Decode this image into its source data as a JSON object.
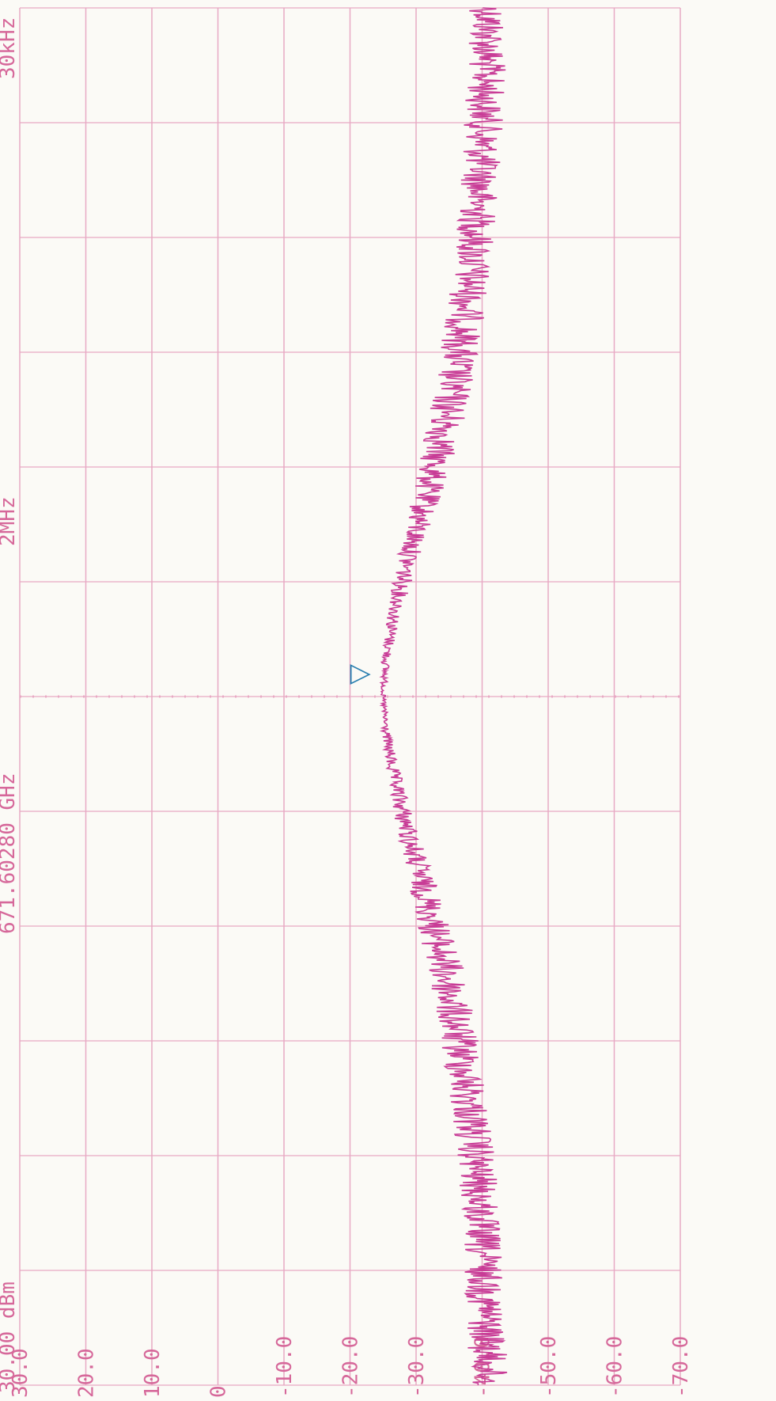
{
  "chart_data": {
    "type": "line",
    "header": {
      "left": "30.00 dBm",
      "center": "671.60280 GHz",
      "span": "2MHz",
      "rbw": "30kHz"
    },
    "y_ticks": [
      "30.0",
      "20.0",
      "10.0",
      "0",
      "-10.0",
      "-20.0",
      "-30.0",
      "-40.0",
      "-50.0",
      "-60.0",
      "-70.0"
    ],
    "ylim": [
      -70,
      30
    ],
    "xlim": [
      -1,
      1
    ],
    "grid": true,
    "marker": {
      "x": 0.0,
      "y": -24.8,
      "symbol": "▽"
    },
    "series": [
      {
        "x": [
          -1.0,
          -0.9,
          -0.8,
          -0.7,
          -0.6,
          -0.5,
          -0.4,
          -0.3,
          -0.2,
          -0.15,
          -0.1,
          -0.05,
          0.0,
          0.05,
          0.1,
          0.15,
          0.2,
          0.3,
          0.4,
          0.5,
          0.6,
          0.7,
          0.8,
          0.9,
          1.0
        ],
        "values": [
          -41,
          -40.6,
          -40,
          -39.3,
          -38.2,
          -36.5,
          -34.5,
          -31.8,
          -28.8,
          -27.5,
          -26.3,
          -25.4,
          -25.0,
          -25.4,
          -26.3,
          -27.5,
          -28.8,
          -31.8,
          -34.5,
          -36.5,
          -38.2,
          -39.3,
          -40,
          -40.6,
          -41
        ],
        "color": "#c83c96"
      }
    ],
    "colors": {
      "grid": "#e8a9c4",
      "text": "#d6689a",
      "trace": "#c83c96",
      "marker": "#2a7fb0",
      "background": "#fbfaf6"
    }
  }
}
